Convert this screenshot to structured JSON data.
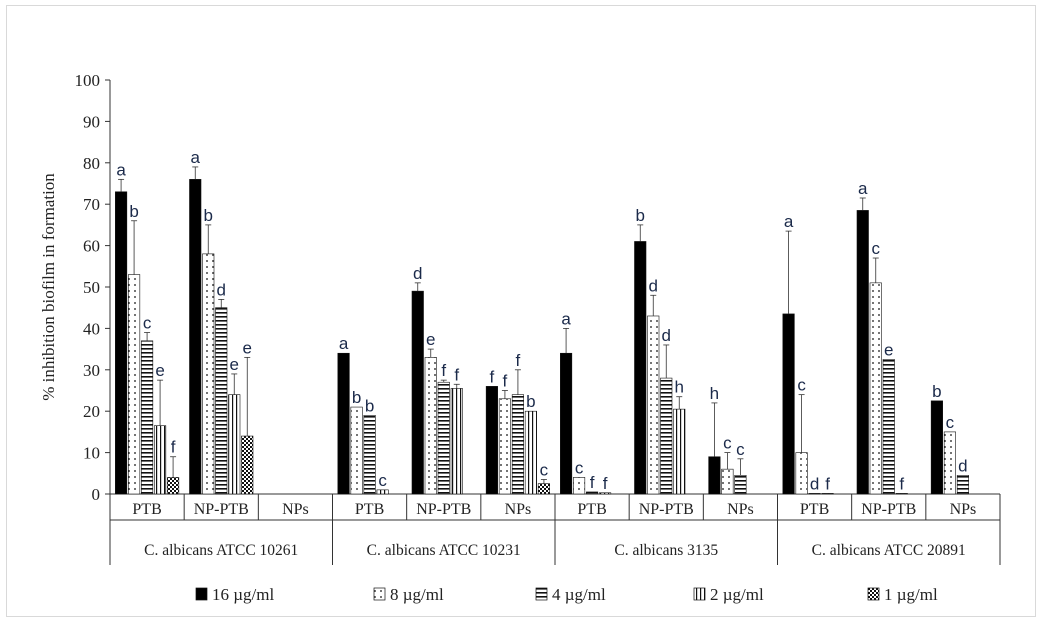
{
  "chart_data": {
    "type": "bar",
    "ylabel": "% inhibition biofilm in formation",
    "ylim": [
      0,
      100
    ],
    "yticks": [
      "0",
      "10",
      "20",
      "30",
      "40",
      "50",
      "60",
      "70",
      "80",
      "90",
      "100"
    ],
    "grid": false,
    "legend_position": "bottom",
    "groups": [
      {
        "name": "C. albicans ATCC 10261",
        "categories": [
          "PTB",
          "NP-PTB",
          "NPs"
        ]
      },
      {
        "name": "C. albicans ATCC 10231",
        "categories": [
          "PTB",
          "NP-PTB",
          "NPs"
        ]
      },
      {
        "name": "C. albicans 3135",
        "categories": [
          "PTB",
          "NP-PTB",
          "NPs"
        ]
      },
      {
        "name": "C. albicans ATCC 20891",
        "categories": [
          "PTB",
          "NP-PTB",
          "NPs"
        ]
      }
    ],
    "series": [
      {
        "name": "16 µg/ml",
        "pattern": "solid",
        "values": [
          73,
          76,
          null,
          34,
          49,
          26,
          34,
          61,
          9,
          43.5,
          68.5,
          22.5
        ],
        "errors": [
          3,
          3,
          null,
          0,
          2,
          0,
          6,
          4,
          13,
          20,
          3,
          0
        ],
        "letters": [
          "a",
          "a",
          "",
          "a",
          "d",
          "f",
          "a",
          "b",
          "h",
          "a",
          "a",
          "b"
        ]
      },
      {
        "name": "8 µg/ml",
        "pattern": "dots",
        "values": [
          53,
          58,
          null,
          21,
          33,
          23,
          4,
          43,
          6,
          10,
          51,
          15
        ],
        "errors": [
          13,
          7,
          null,
          0,
          2,
          2,
          0,
          5,
          4,
          14,
          6,
          0
        ],
        "letters": [
          "b",
          "b",
          "",
          "b",
          "e",
          "f",
          "c",
          "d",
          "c",
          "c",
          "c",
          "c"
        ]
      },
      {
        "name": "4 µg/ml",
        "pattern": "hlines",
        "values": [
          37,
          45,
          null,
          19,
          27,
          24,
          0.5,
          28,
          4.5,
          0,
          32.5,
          4.5
        ],
        "errors": [
          2,
          2,
          null,
          0,
          0.5,
          6,
          0,
          8,
          4,
          0,
          0,
          0
        ],
        "letters": [
          "c",
          "d",
          "",
          "b",
          "f",
          "f",
          "f",
          "d",
          "c",
          "d",
          "e",
          "d"
        ]
      },
      {
        "name": "2 µg/ml",
        "pattern": "vlines",
        "values": [
          16.5,
          24,
          null,
          1,
          25.5,
          20,
          0.3,
          20.5,
          null,
          0,
          0,
          null
        ],
        "errors": [
          11,
          5,
          null,
          0,
          1,
          0,
          0,
          3,
          null,
          0,
          0,
          null
        ],
        "letters": [
          "e",
          "e",
          "",
          "c",
          "f",
          "b",
          "f",
          "h",
          "",
          "f",
          "f",
          ""
        ]
      },
      {
        "name": "1 µg/ml",
        "pattern": "checker",
        "values": [
          4,
          14,
          null,
          null,
          null,
          2.5,
          null,
          null,
          null,
          null,
          null,
          null
        ],
        "errors": [
          5,
          19,
          null,
          null,
          null,
          1,
          null,
          null,
          null,
          null,
          null,
          null
        ],
        "letters": [
          "f",
          "e",
          "",
          "",
          "",
          "c",
          "",
          "",
          "",
          "",
          "",
          ""
        ]
      }
    ]
  }
}
